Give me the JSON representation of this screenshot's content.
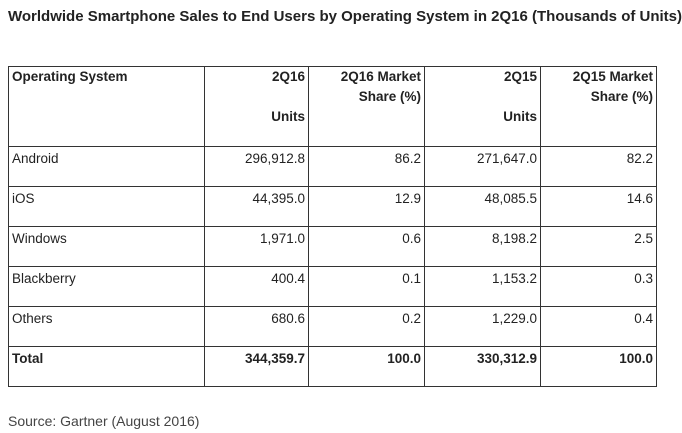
{
  "title": "Worldwide Smartphone Sales to End Users by Operating System in 2Q16 (Thousands of Units)",
  "chart_data": {
    "type": "table",
    "title": "Worldwide Smartphone Sales to End Users by Operating System in 2Q16 (Thousands of Units)",
    "columns": [
      {
        "line1": "Operating System",
        "line2": ""
      },
      {
        "line1": "2Q16",
        "line2": "",
        "units": "Units"
      },
      {
        "line1": "2Q16 Market",
        "line2": "Share (%)",
        "units": ""
      },
      {
        "line1": "2Q15",
        "line2": "",
        "units": "Units"
      },
      {
        "line1": "2Q15 Market",
        "line2": "Share (%)",
        "units": ""
      }
    ],
    "rows": [
      {
        "os": "Android",
        "units_2q16": "296,912.8",
        "share_2q16": "86.2",
        "units_2q15": "271,647.0",
        "share_2q15": "82.2"
      },
      {
        "os": "iOS",
        "units_2q16": "44,395.0",
        "share_2q16": "12.9",
        "units_2q15": "48,085.5",
        "share_2q15": "14.6"
      },
      {
        "os": "Windows",
        "units_2q16": "1,971.0",
        "share_2q16": "0.6",
        "units_2q15": "8,198.2",
        "share_2q15": "2.5"
      },
      {
        "os": "Blackberry",
        "units_2q16": "400.4",
        "share_2q16": "0.1",
        "units_2q15": "1,153.2",
        "share_2q15": "0.3"
      },
      {
        "os": "Others",
        "units_2q16": "680.6",
        "share_2q16": "0.2",
        "units_2q15": "1,229.0",
        "share_2q15": "0.4"
      }
    ],
    "total": {
      "os": "Total",
      "units_2q16": "344,359.7",
      "share_2q16": "100.0",
      "units_2q15": "330,312.9",
      "share_2q15": "100.0"
    }
  },
  "source": "Source: Gartner (August 2016)"
}
